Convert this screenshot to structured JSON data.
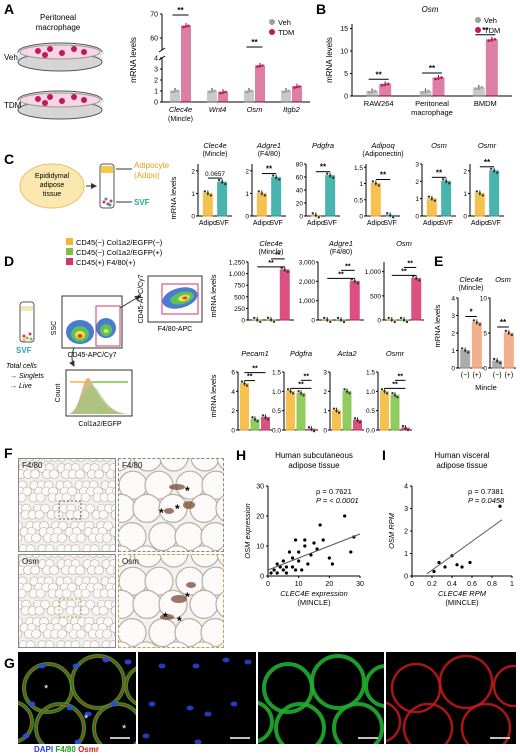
{
  "panels": {
    "A": {
      "letter": "A",
      "cell_label": "Peritoneal\nmacrophage",
      "group_labels": [
        "Veh",
        "TDM"
      ],
      "legend": [
        {
          "name": "Veh",
          "color": "#9e9e9e"
        },
        {
          "name": "TDM",
          "color": "#c2185b"
        }
      ],
      "ylabel": "mRNA levels",
      "sig": [
        "**",
        "**"
      ]
    },
    "B": {
      "letter": "B",
      "title": "Osm",
      "ylabel": "mRNA levels",
      "legend": [
        {
          "name": "Veh",
          "color": "#9e9e9e"
        },
        {
          "name": "TDM",
          "color": "#c2185b"
        }
      ],
      "sig": [
        "**",
        "**",
        "**"
      ]
    },
    "C": {
      "letter": "C",
      "tissue_label": "Epididymal\nadipose\ntissue",
      "adipo_label": "Adipocyte\n(Adipo)",
      "svf_label": "SVF",
      "ylabel": "mRNA levels",
      "pvalue_text": "0.0657"
    },
    "D": {
      "letter": "D",
      "legend": [
        {
          "name": "CD45(−) Col1a2/EGFP(−)",
          "color": "#f5b731"
        },
        {
          "name": "CD45(−) Col1a2/EGFP(+)",
          "color": "#7cc242"
        },
        {
          "name": "CD45(+) F4/80(+)",
          "color": "#d6336c"
        }
      ],
      "svf_label": "SVF",
      "gating": [
        "Total cells",
        "→ Singlets",
        "→ Live"
      ],
      "ssc": "SSC",
      "cd45_x": "CD45-APC/Cy7",
      "cd45_y": "CD45-APC/Cy7",
      "f480": "F4/80-APC",
      "count": "Count",
      "col1a2": "Col1a2/EGFP",
      "ylabel": "mRNA levels"
    },
    "E": {
      "letter": "E",
      "ylabel": "mRNA levels",
      "xgroup": "Mincle"
    },
    "F": {
      "letter": "F",
      "labels": [
        "F4/80",
        "F4/80",
        "Osm",
        "Osm"
      ],
      "stars": "*"
    },
    "H": {
      "letter": "H",
      "title": "Human subcutaneous\nadipose tissue",
      "rho": "ρ = 0.7621",
      "p": "P = < 0.0001",
      "ylabel": "OSM expression",
      "xlabel": "CLEC4E expression",
      "xsub": "(MINCLE)"
    },
    "I": {
      "letter": "I",
      "title": "Human visceral\nadipose tissue",
      "rho": "ρ = 0.7381",
      "p": "P = 0.0458",
      "ylabel": "OSM RPM",
      "xlabel": "CLEC4E RPM",
      "xsub": "(MINCLE)"
    },
    "G": {
      "letter": "G",
      "legend": [
        {
          "name": "DAPI",
          "color": "#2a3fd6"
        },
        {
          "name": "F4/80",
          "color": "#1f9d1f"
        },
        {
          "name": "Osmr",
          "color": "#d62020"
        }
      ]
    }
  },
  "chart_data": [
    {
      "panel": "A",
      "type": "bar",
      "categories": [
        "Clec4e",
        "Wnt4",
        "Osm",
        "Itgb2"
      ],
      "category_subs": [
        "(Mincle)",
        "",
        "",
        ""
      ],
      "series": [
        {
          "name": "Veh",
          "values": [
            1,
            1,
            1,
            1
          ]
        },
        {
          "name": "TDM",
          "values": [
            65,
            0.9,
            3.3,
            1.4
          ]
        }
      ],
      "yticks_lower": [
        0,
        1,
        2,
        3,
        4
      ],
      "yticks_upper": [
        60,
        70
      ],
      "axis_break": true
    },
    {
      "panel": "B",
      "type": "bar",
      "categories": [
        "RAW264",
        "Peritoneal\nmacrophage",
        "BMDM"
      ],
      "series": [
        {
          "name": "Veh",
          "values": [
            1,
            1,
            1.8
          ]
        },
        {
          "name": "TDM",
          "values": [
            2.6,
            4,
            12.5
          ]
        }
      ],
      "yticks": [
        0,
        5,
        10,
        15
      ],
      "ylim": [
        0,
        16
      ]
    },
    {
      "panel": "C",
      "type": "bar",
      "categories": [
        "Adipo",
        "SVF"
      ],
      "genes": [
        {
          "title": "Clec4e",
          "sub": "(Mincle)",
          "values": [
            1,
            1.5
          ],
          "yticks": [
            0,
            1,
            2
          ],
          "ylim": [
            0,
            2.3
          ]
        },
        {
          "title": "Adgre1",
          "sub": "(F4/80)",
          "values": [
            1,
            1.7
          ],
          "yticks": [
            0,
            1,
            2
          ],
          "ylim": [
            0,
            2.3
          ]
        },
        {
          "title": "Pdgfra",
          "sub": "",
          "values": [
            1,
            62
          ],
          "yticks": [
            0,
            20,
            40,
            60,
            80
          ],
          "ylim": [
            0,
            80
          ]
        },
        {
          "title": "Adipoq",
          "sub": "(Adiponectin)",
          "values": [
            1,
            0.02
          ],
          "yticks": [
            0,
            0.5,
            1.0,
            1.5
          ],
          "ylim": [
            0,
            1.6
          ]
        },
        {
          "title": "Osm",
          "sub": "",
          "values": [
            1,
            2.0
          ],
          "yticks": [
            0,
            1,
            2,
            3
          ],
          "ylim": [
            0,
            3
          ]
        },
        {
          "title": "Osmr",
          "sub": "",
          "values": [
            1,
            2.0
          ],
          "yticks": [
            0,
            1,
            2
          ],
          "ylim": [
            0,
            2.3
          ]
        }
      ],
      "colors": [
        "#f5b731",
        "#2aa9a0"
      ],
      "sig": [
        "0.0657",
        "**",
        "**",
        "**",
        "**",
        "**"
      ]
    },
    {
      "panel": "D",
      "type": "bar",
      "groups": [
        "CD45(−) Col1a2/EGFP(−)",
        "CD45(−) Col1a2/EGFP(+)",
        "CD45(+) F4/80(+)"
      ],
      "genes": [
        {
          "title": "Clec4e",
          "sub": "(Mincle)",
          "values": [
            1,
            3,
            1080
          ],
          "yticks": [
            "0",
            "250",
            "500",
            "750",
            "1,000",
            "1,250"
          ],
          "ymax": 1250
        },
        {
          "title": "Adgre1",
          "sub": "(F4/80)",
          "values": [
            1,
            3,
            2000
          ],
          "yticks": [
            "0",
            "1,000",
            "2,000",
            "3,000"
          ],
          "ymax": 3000
        },
        {
          "title": "Osm",
          "sub": "",
          "values": [
            1,
            1,
            860
          ],
          "yticks": [
            "0",
            "500",
            "1,000"
          ],
          "ymax": 1200
        },
        {
          "title": "Pecam1",
          "sub": "",
          "values": [
            4.8,
            1.1,
            1.3
          ],
          "yticks": [
            "0",
            "2",
            "4",
            "6"
          ],
          "ymax": 6
        },
        {
          "title": "Pdgfra",
          "sub": "",
          "values": [
            1,
            0.95,
            0.02
          ],
          "yticks": [
            "0.0",
            "0.5",
            "1.0",
            "1.5"
          ],
          "ymax": 1.5
        },
        {
          "title": "Acta2",
          "sub": "",
          "values": [
            1,
            2,
            0.5
          ],
          "yticks": [
            "0",
            "1",
            "2",
            "3"
          ],
          "ymax": 3
        },
        {
          "title": "Osmr",
          "sub": "",
          "values": [
            1,
            0.9,
            0.05
          ],
          "yticks": [
            "0.0",
            "0.5",
            "1.0",
            "1.5"
          ],
          "ymax": 1.5
        }
      ],
      "colors": [
        "#f5b731",
        "#7cc242",
        "#d6336c"
      ]
    },
    {
      "panel": "E",
      "type": "bar",
      "categories": [
        "(−)",
        "(+)"
      ],
      "genes": [
        {
          "title": "Clec4e",
          "sub": "(Mincle)",
          "values": [
            1,
            2.6
          ],
          "yticks": [
            0,
            1,
            2,
            3,
            4
          ],
          "ymax": 4,
          "sig": "*"
        },
        {
          "title": "Osm",
          "sub": "",
          "values": [
            1,
            5
          ],
          "yticks": [
            0,
            5,
            10
          ],
          "ymax": 10,
          "sig": "**"
        }
      ],
      "colors": [
        "#9e9e9e",
        "#f0a278"
      ]
    },
    {
      "panel": "H",
      "type": "scatter",
      "xticks": [
        0,
        10,
        20,
        30
      ],
      "yticks": [
        0,
        10,
        20,
        30
      ],
      "xlim": [
        0,
        30
      ],
      "ylim": [
        0,
        30
      ],
      "points": [
        [
          1,
          1
        ],
        [
          2,
          2
        ],
        [
          3,
          4
        ],
        [
          4,
          3
        ],
        [
          5,
          2
        ],
        [
          5,
          5
        ],
        [
          6,
          1
        ],
        [
          7,
          8
        ],
        [
          8,
          3
        ],
        [
          8,
          6
        ],
        [
          9,
          12
        ],
        [
          10,
          5
        ],
        [
          10,
          8
        ],
        [
          11,
          2
        ],
        [
          12,
          10
        ],
        [
          13,
          4
        ],
        [
          14,
          7
        ],
        [
          15,
          11
        ],
        [
          16,
          9
        ],
        [
          18,
          12
        ],
        [
          20,
          6
        ],
        [
          21,
          4
        ],
        [
          27,
          8
        ],
        [
          28,
          13
        ],
        [
          9,
          2
        ],
        [
          6,
          3
        ],
        [
          3,
          1
        ],
        [
          12,
          12
        ],
        [
          17,
          17
        ],
        [
          25,
          20
        ]
      ],
      "fit": [
        [
          0,
          2
        ],
        [
          30,
          14
        ]
      ]
    },
    {
      "panel": "I",
      "type": "scatter",
      "xticks": [
        0,
        0.2,
        0.4,
        0.6,
        0.8,
        1.0
      ],
      "yticks": [
        0,
        1,
        2,
        3,
        4
      ],
      "xlim": [
        0,
        1.0
      ],
      "ylim": [
        0,
        4
      ],
      "points": [
        [
          0.22,
          0.2
        ],
        [
          0.27,
          0.6
        ],
        [
          0.33,
          0.4
        ],
        [
          0.4,
          0.9
        ],
        [
          0.45,
          0.5
        ],
        [
          0.5,
          0.4
        ],
        [
          0.58,
          0.6
        ],
        [
          0.88,
          3.1
        ]
      ],
      "fit": [
        [
          0.15,
          0.1
        ],
        [
          0.9,
          2.5
        ]
      ]
    }
  ]
}
